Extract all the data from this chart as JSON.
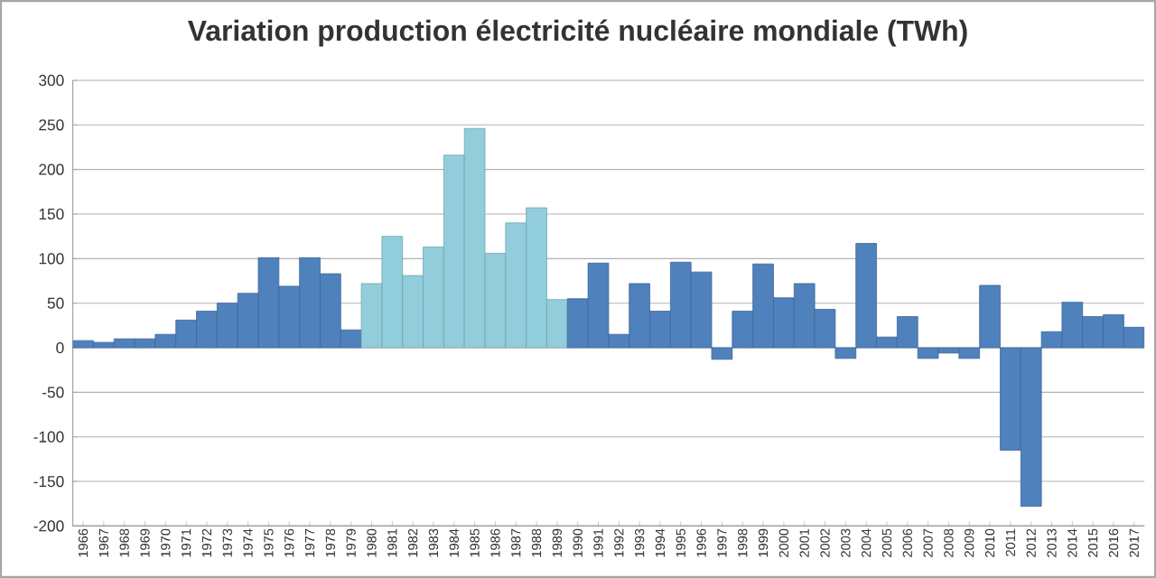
{
  "chart_data": {
    "type": "bar",
    "title": "Variation production électricité nucléaire mondiale (TWh)",
    "categories": [
      "1966",
      "1967",
      "1968",
      "1969",
      "1970",
      "1971",
      "1972",
      "1973",
      "1974",
      "1975",
      "1976",
      "1977",
      "1978",
      "1979",
      "1980",
      "1981",
      "1982",
      "1983",
      "1984",
      "1985",
      "1986",
      "1987",
      "1988",
      "1989",
      "1990",
      "1991",
      "1992",
      "1993",
      "1994",
      "1995",
      "1996",
      "1997",
      "1998",
      "1999",
      "2000",
      "2001",
      "2002",
      "2003",
      "2004",
      "2005",
      "2006",
      "2007",
      "2008",
      "2009",
      "2010",
      "2011",
      "2012",
      "2013",
      "2014",
      "2015",
      "2016",
      "2017"
    ],
    "values": [
      8,
      6,
      10,
      10,
      15,
      31,
      41,
      50,
      61,
      101,
      69,
      101,
      83,
      20,
      72,
      125,
      81,
      113,
      216,
      246,
      106,
      140,
      157,
      54,
      55,
      95,
      15,
      72,
      41,
      96,
      85,
      -13,
      41,
      94,
      56,
      72,
      43,
      -12,
      117,
      12,
      35,
      -12,
      -6,
      -12,
      70,
      -115,
      -178,
      18,
      51,
      35,
      37,
      23
    ],
    "colors": [
      "#4f81bd",
      "#4f81bd",
      "#4f81bd",
      "#4f81bd",
      "#4f81bd",
      "#4f81bd",
      "#4f81bd",
      "#4f81bd",
      "#4f81bd",
      "#4f81bd",
      "#4f81bd",
      "#4f81bd",
      "#4f81bd",
      "#4f81bd",
      "#92cddc",
      "#92cddc",
      "#92cddc",
      "#92cddc",
      "#92cddc",
      "#92cddc",
      "#92cddc",
      "#92cddc",
      "#92cddc",
      "#92cddc",
      "#4f81bd",
      "#4f81bd",
      "#4f81bd",
      "#4f81bd",
      "#4f81bd",
      "#4f81bd",
      "#4f81bd",
      "#4f81bd",
      "#4f81bd",
      "#4f81bd",
      "#4f81bd",
      "#4f81bd",
      "#4f81bd",
      "#4f81bd",
      "#4f81bd",
      "#4f81bd",
      "#4f81bd",
      "#4f81bd",
      "#4f81bd",
      "#4f81bd",
      "#4f81bd",
      "#4f81bd",
      "#4f81bd",
      "#4f81bd",
      "#4f81bd",
      "#4f81bd",
      "#4f81bd",
      "#4f81bd"
    ],
    "ylim": [
      -200,
      300
    ],
    "yticks": [
      -200,
      -150,
      -100,
      -50,
      0,
      50,
      100,
      150,
      200,
      250,
      300
    ],
    "grid": "y"
  }
}
